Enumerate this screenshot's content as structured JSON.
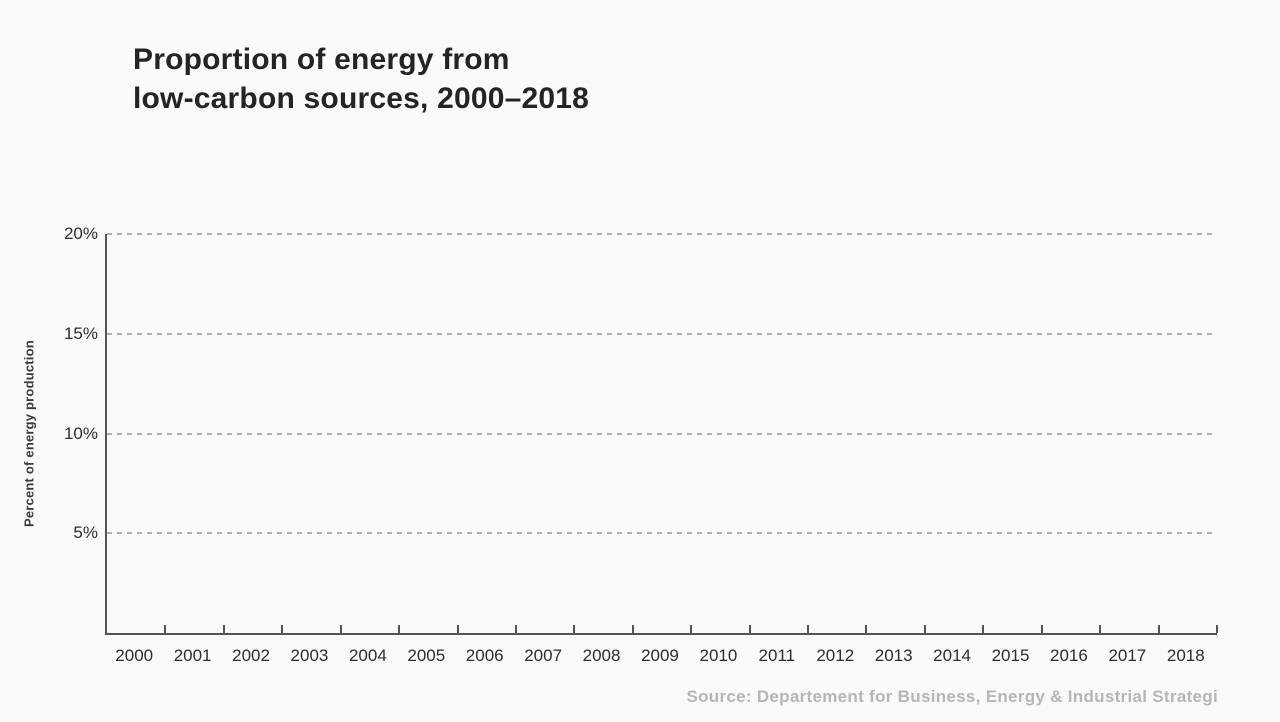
{
  "page": {
    "background_color": "#fafaf8"
  },
  "chart": {
    "title_line1": "Proportion of energy from",
    "title_line2": "low-carbon sources, 2000–2018",
    "y_axis_label": "Percent of energy production",
    "y_ticks": [
      {
        "label": "20%",
        "value": 20
      },
      {
        "label": "15%",
        "value": 15
      },
      {
        "label": "10%",
        "value": 10
      },
      {
        "label": "5%",
        "value": 5
      }
    ],
    "x_ticks": [
      "2000",
      "2001",
      "2002",
      "2003",
      "2004",
      "2005",
      "2006",
      "2007",
      "2008",
      "2009",
      "2010",
      "2011",
      "2012",
      "2013",
      "2014",
      "2015",
      "2016",
      "2017",
      "2018"
    ],
    "source": "Source: Departement for Business, Energy & Industrial Strategi",
    "colors": {
      "title": "#242424",
      "axis_line": "#555553",
      "gridline": "#b1b0ad",
      "tick_label": "#2d2d2d",
      "source_text": "#b6b6b4",
      "background": "#fafaf8"
    }
  },
  "chart_data": {
    "type": "line",
    "title": "Proportion of energy from low-carbon sources, 2000–2018",
    "xlabel": "",
    "ylabel": "Percent of energy production",
    "x": [
      2000,
      2001,
      2002,
      2003,
      2004,
      2005,
      2006,
      2007,
      2008,
      2009,
      2010,
      2011,
      2012,
      2013,
      2014,
      2015,
      2016,
      2017,
      2018
    ],
    "xlim": [
      2000,
      2019
    ],
    "ylim": [
      0,
      20
    ],
    "yticks": [
      5,
      10,
      15,
      20
    ],
    "ytick_labels": [
      "5%",
      "10%",
      "15%",
      "20%"
    ],
    "grid": "horizontal dashed gridlines at each y tick",
    "legend_position": "none",
    "series": [],
    "note_visible_state": "Axes, gridlines and tick labels are drawn but no data series is plotted in this frame",
    "source": "Source: Departement for Business, Energy & Industrial Strategi"
  }
}
